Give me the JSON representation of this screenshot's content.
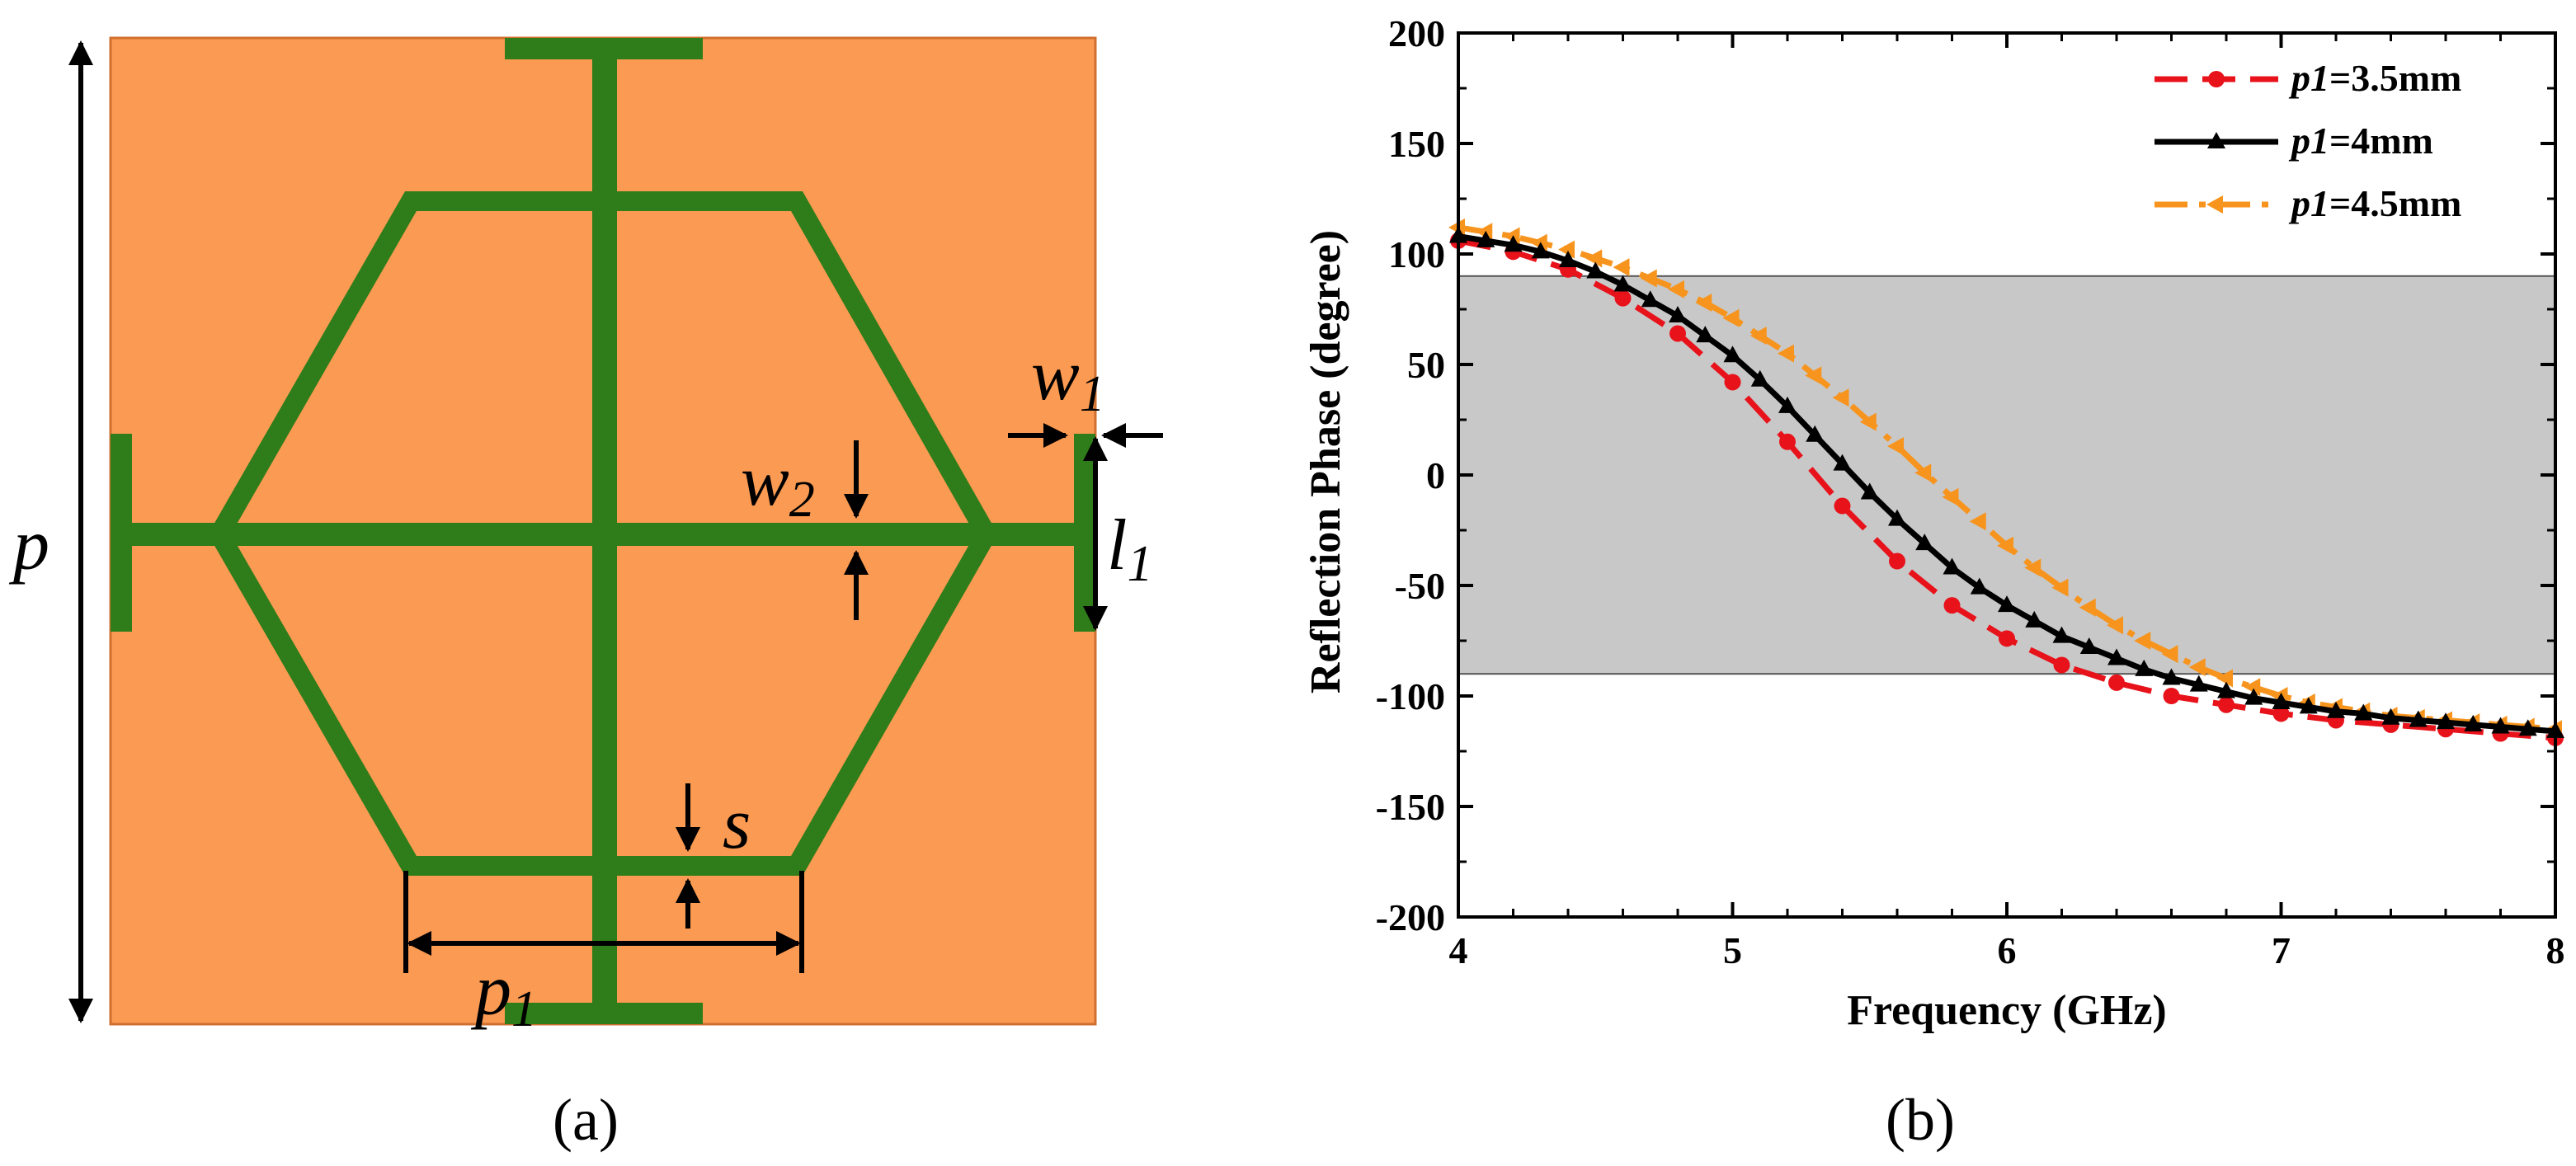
{
  "panel_a": {
    "caption": "(a)",
    "labels": {
      "p": "p",
      "p1_base": "p",
      "p1_sub": "1",
      "s": "s",
      "w1_base": "w",
      "w1_sub": "1",
      "w2_base": "w",
      "w2_sub": "2",
      "l1_base": "l",
      "l1_sub": "1"
    },
    "colors": {
      "substrate": "#fb9a52",
      "metal": "#2e7d1a",
      "arrow": "#000000"
    }
  },
  "panel_b": {
    "caption": "(b)"
  },
  "chart_data": {
    "type": "line",
    "xlabel": "Frequency (GHz)",
    "ylabel": "Reflection Phase  (degree)",
    "xlim": [
      4,
      8
    ],
    "ylim": [
      -200,
      200
    ],
    "xticks": [
      4,
      5,
      6,
      7,
      8
    ],
    "yticks": [
      200,
      150,
      100,
      50,
      0,
      -50,
      -100,
      -150,
      -200
    ],
    "band": {
      "ymin": -90,
      "ymax": 90,
      "color": "#c8c8c8"
    },
    "legend_position": "top-right",
    "grid": false,
    "series": [
      {
        "name": "=3.5mm",
        "name_prefix": "p1",
        "color": "#e8121b",
        "dash": "dashed",
        "marker": "circle",
        "x": [
          4.0,
          4.2,
          4.4,
          4.6,
          4.8,
          5.0,
          5.2,
          5.4,
          5.6,
          5.8,
          6.0,
          6.2,
          6.4,
          6.6,
          6.8,
          7.0,
          7.2,
          7.4,
          7.6,
          7.8,
          8.0
        ],
        "y": [
          106,
          101,
          93,
          80,
          64,
          42,
          15,
          -14,
          -39,
          -59,
          -74,
          -86,
          -94,
          -100,
          -104,
          -108,
          -111,
          -113,
          -115,
          -117,
          -119
        ]
      },
      {
        "name": "=4mm",
        "name_prefix": "p1",
        "color": "#000000",
        "dash": "solid",
        "marker": "triangle-up",
        "x": [
          4.0,
          4.1,
          4.2,
          4.3,
          4.4,
          4.5,
          4.6,
          4.7,
          4.8,
          4.9,
          5.0,
          5.1,
          5.2,
          5.3,
          5.4,
          5.5,
          5.6,
          5.7,
          5.8,
          5.9,
          6.0,
          6.1,
          6.2,
          6.3,
          6.4,
          6.5,
          6.6,
          6.7,
          6.8,
          6.9,
          7.0,
          7.1,
          7.2,
          7.3,
          7.4,
          7.5,
          7.6,
          7.7,
          7.8,
          7.9,
          8.0
        ],
        "y": [
          108,
          106,
          104,
          101,
          97,
          92,
          86,
          79,
          72,
          63,
          54,
          43,
          31,
          18,
          5,
          -8,
          -20,
          -31,
          -42,
          -51,
          -59,
          -66,
          -73,
          -78,
          -83,
          -88,
          -92,
          -95,
          -98,
          -101,
          -103,
          -105,
          -107,
          -108,
          -110,
          -111,
          -112,
          -113,
          -114,
          -115,
          -116
        ]
      },
      {
        "name": "=4.5mm",
        "name_prefix": "p1",
        "color": "#f7941d",
        "dash": "dashdot",
        "marker": "triangle-left",
        "x": [
          4.0,
          4.1,
          4.2,
          4.3,
          4.4,
          4.5,
          4.6,
          4.7,
          4.8,
          4.9,
          5.0,
          5.1,
          5.2,
          5.3,
          5.4,
          5.5,
          5.6,
          5.7,
          5.8,
          5.9,
          6.0,
          6.1,
          6.2,
          6.3,
          6.4,
          6.5,
          6.6,
          6.7,
          6.8,
          6.9,
          7.0,
          7.1,
          7.2,
          7.3,
          7.4,
          7.5,
          7.6,
          7.7,
          7.8,
          7.9,
          8.0
        ],
        "y": [
          112,
          110,
          108,
          105,
          102,
          98,
          94,
          89,
          84,
          78,
          71,
          63,
          55,
          45,
          35,
          24,
          13,
          1,
          -10,
          -21,
          -32,
          -42,
          -51,
          -60,
          -68,
          -75,
          -81,
          -87,
          -92,
          -96,
          -100,
          -103,
          -105,
          -107,
          -109,
          -110,
          -111,
          -112,
          -113,
          -114,
          -115
        ]
      }
    ]
  }
}
